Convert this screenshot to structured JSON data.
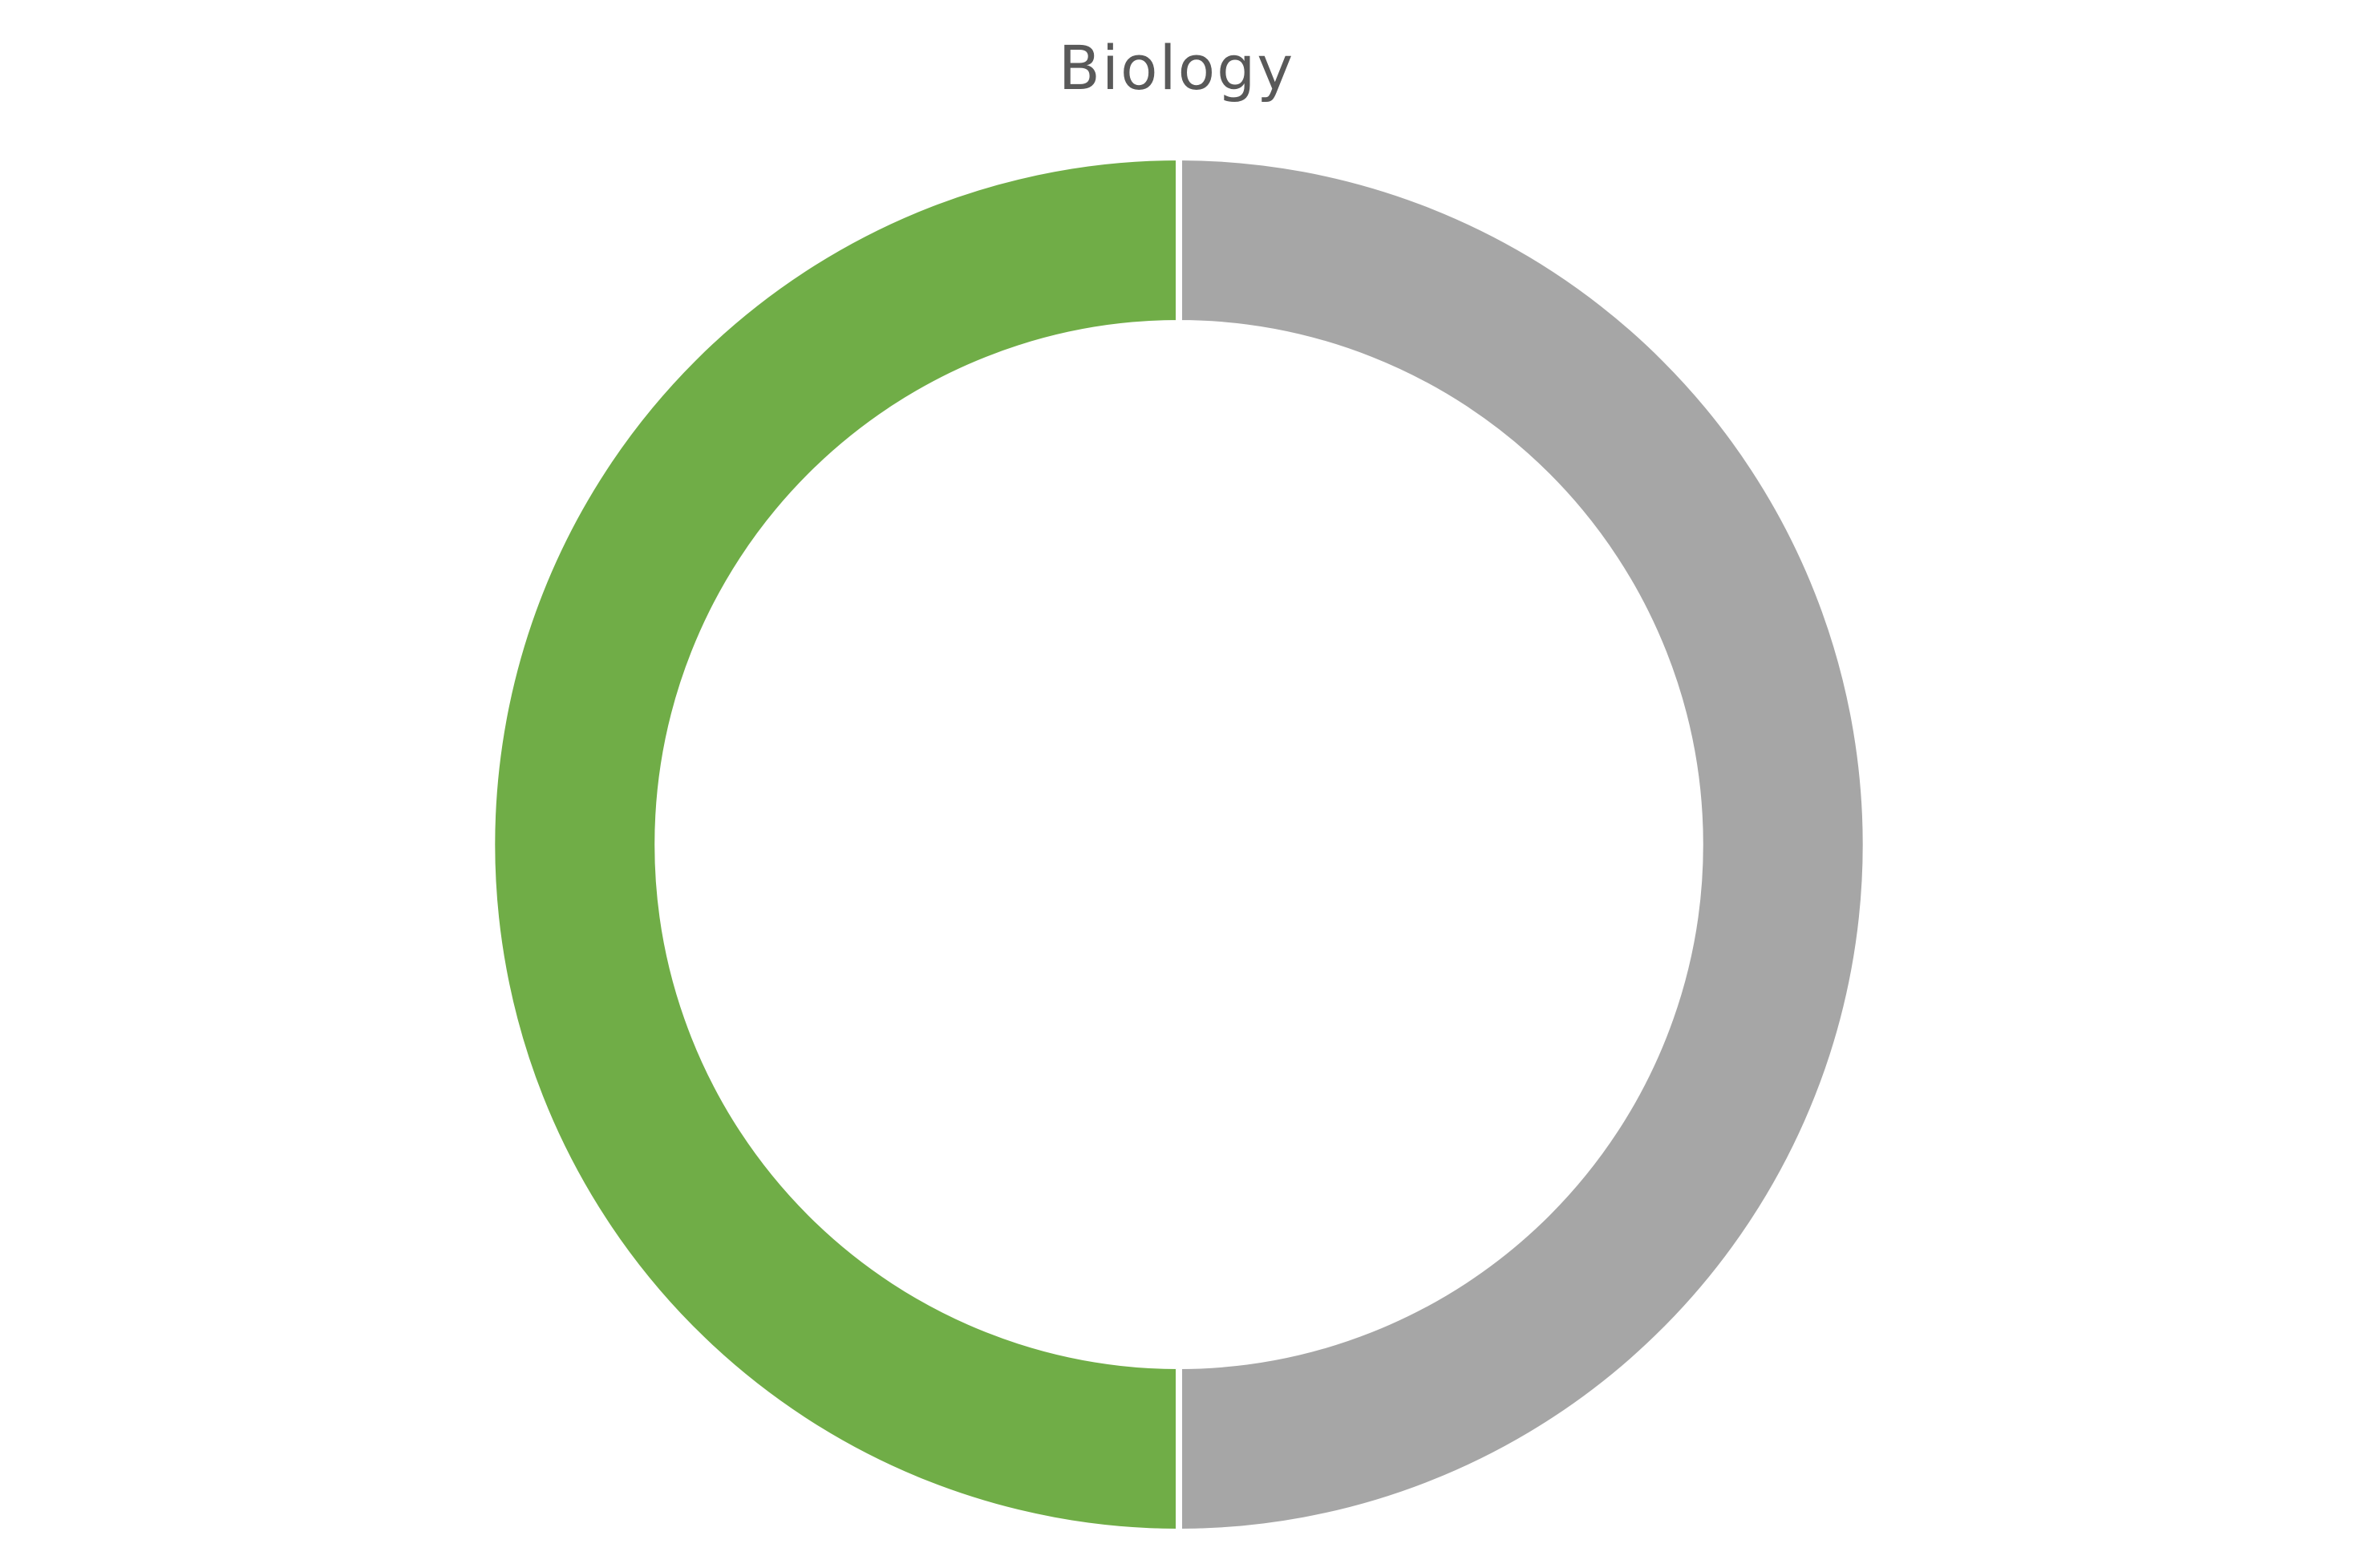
{
  "chart_data": {
    "type": "pie",
    "variant": "donut",
    "title": "Biology",
    "start_angle": "top",
    "direction": "clockwise",
    "slices": [
      {
        "value": 50,
        "color": "#a6a6a6"
      },
      {
        "value": 50,
        "color": "#70ad47"
      }
    ],
    "separator_color": "#ffffff",
    "legend": "none",
    "data_labels": "none"
  }
}
